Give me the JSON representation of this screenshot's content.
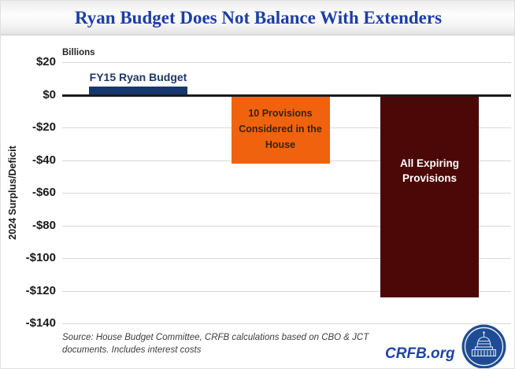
{
  "title": "Ryan Budget Does Not Balance With Extenders",
  "chart_data": {
    "type": "bar",
    "title": "Ryan Budget Does Not Balance With Extenders",
    "units_label": "Billions",
    "y_axis_title": "2024 Surplus/Deficit",
    "categories": [
      "FY15 Ryan Budget",
      "10 Provisions Considered in the House",
      "All Expiring Provisions"
    ],
    "values": [
      5,
      -42,
      -124
    ],
    "ylim": [
      -140,
      20
    ],
    "ytick_values": [
      20,
      0,
      -20,
      -40,
      -60,
      -80,
      -100,
      -120,
      -140
    ],
    "ytick_labels": [
      "$20",
      "$0",
      "-$20",
      "-$40",
      "-$60",
      "-$80",
      "-$100",
      "-$120",
      "-$140"
    ],
    "grid": true,
    "legend": false,
    "bars": [
      {
        "name": "fy15-ryan-budget",
        "label_lines": [
          "FY15 Ryan Budget"
        ],
        "value": 5,
        "color": "#17386E",
        "label_color": "#1F3864",
        "label_placement": "above"
      },
      {
        "name": "house-provisions",
        "label_lines": [
          "10 Provisions",
          "Considered in the",
          "House"
        ],
        "value": -42,
        "color": "#F0620D",
        "label_color": "#3B2314",
        "label_placement": "inside-center"
      },
      {
        "name": "all-expiring-provisions",
        "label_lines": [
          "All Expiring",
          "Provisions"
        ],
        "value": -124,
        "color": "#4C0707",
        "label_color": "#FFFFFF",
        "label_placement": "inside-upper"
      }
    ]
  },
  "footer": {
    "source_lines": [
      "Source: House Budget Committee, CRFB calculations based on CBO & JCT",
      "documents. Includes interest costs"
    ],
    "site_label": "CRFB.org"
  },
  "colors": {
    "title_blue": "#1C3EA6",
    "bar_navy": "#17386E",
    "bar_orange": "#F0620D",
    "bar_maroon": "#4C0707",
    "site_blue": "#2143A5",
    "logo_blue": "#1E4C94"
  }
}
